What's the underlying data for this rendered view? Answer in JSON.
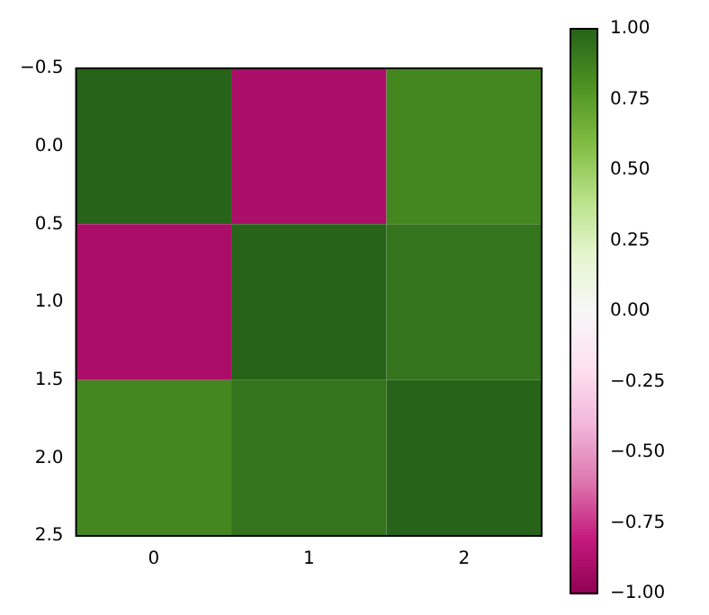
{
  "chart_data": {
    "type": "heatmap",
    "cells": [
      [
        1.0,
        -0.9,
        0.85
      ],
      [
        -0.9,
        1.0,
        0.93
      ],
      [
        0.85,
        0.93,
        1.0
      ]
    ],
    "xlim": [
      -0.5,
      2.5
    ],
    "xticks": [
      0,
      1,
      2
    ],
    "ylim": [
      2.5,
      -0.5
    ],
    "yticks": [
      {
        "value": -0.5,
        "label": "−0.5"
      },
      {
        "value": 0,
        "label": "0.0"
      },
      {
        "value": 0.5,
        "label": "0.5"
      },
      {
        "value": 1,
        "label": "1.0"
      },
      {
        "value": 1.5,
        "label": "1.5"
      },
      {
        "value": 2,
        "label": "2.0"
      },
      {
        "value": 2.5,
        "label": "2.5"
      }
    ],
    "clim": [
      -1,
      1
    ],
    "cticks": [
      {
        "value": -1,
        "label": "−1.00"
      },
      {
        "value": -0.75,
        "label": "−0.75"
      },
      {
        "value": -0.5,
        "label": "−0.50"
      },
      {
        "value": -0.25,
        "label": "−0.25"
      },
      {
        "value": 0,
        "label": "0.00"
      },
      {
        "value": 0.25,
        "label": "0.25"
      },
      {
        "value": 0.5,
        "label": "0.50"
      },
      {
        "value": 0.75,
        "label": "0.75"
      },
      {
        "value": 1,
        "label": "1.00"
      }
    ]
  }
}
